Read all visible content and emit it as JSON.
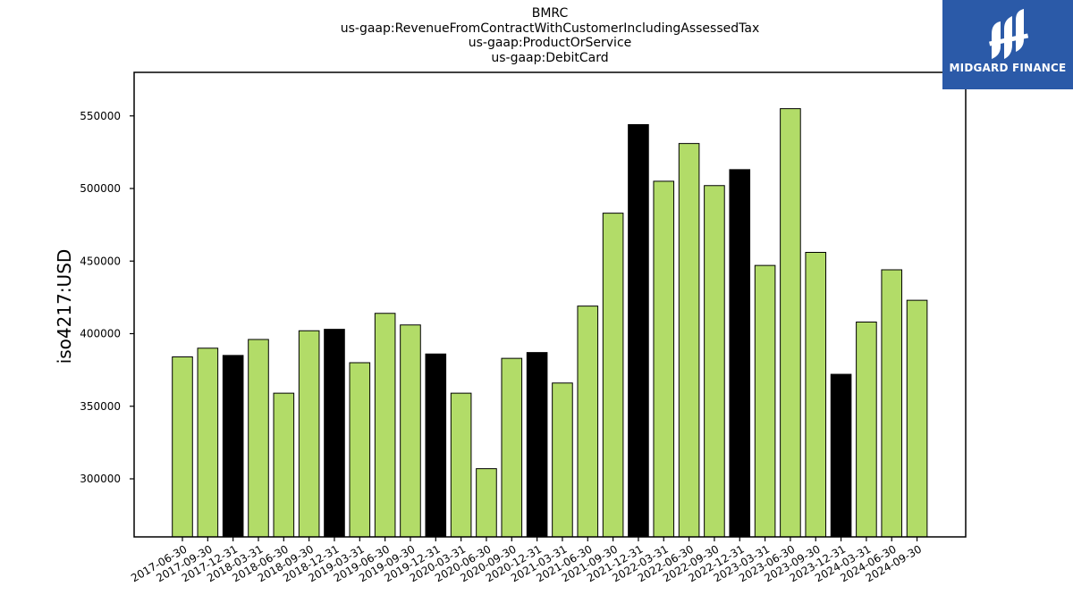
{
  "chart_data": {
    "type": "bar",
    "title_lines": [
      "BMRC",
      "us-gaap:RevenueFromContractWithCustomerIncludingAssessedTax",
      "us-gaap:ProductOrService",
      "us-gaap:DebitCard"
    ],
    "ylabel": "iso4217:USD",
    "xlabel": "",
    "ylim": [
      260000,
      580000
    ],
    "yticks": [
      300000,
      350000,
      400000,
      450000,
      500000,
      550000
    ],
    "ytick_labels": [
      "300000",
      "350000",
      "400000",
      "450000",
      "500000",
      "550000"
    ],
    "categories": [
      "2017-06-30",
      "2017-09-30",
      "2017-12-31",
      "2018-03-31",
      "2018-06-30",
      "2018-09-30",
      "2018-12-31",
      "2019-03-31",
      "2019-06-30",
      "2019-09-30",
      "2019-12-31",
      "2020-03-31",
      "2020-06-30",
      "2020-09-30",
      "2020-12-31",
      "2021-03-31",
      "2021-06-30",
      "2021-09-30",
      "2021-12-31",
      "2022-03-31",
      "2022-06-30",
      "2022-09-30",
      "2022-12-31",
      "2023-03-31",
      "2023-06-30",
      "2023-09-30",
      "2023-12-31",
      "2024-03-31",
      "2024-06-30",
      "2024-09-30"
    ],
    "values": [
      384000,
      390000,
      385000,
      396000,
      359000,
      402000,
      403000,
      380000,
      414000,
      406000,
      386000,
      359000,
      307000,
      383000,
      387000,
      366000,
      419000,
      483000,
      544000,
      505000,
      531000,
      502000,
      513000,
      447000,
      555000,
      456000,
      372000,
      408000,
      444000,
      423000
    ],
    "highlight_categories": [
      "2017-12-31",
      "2018-12-31",
      "2019-12-31",
      "2020-12-31",
      "2021-12-31",
      "2022-12-31",
      "2023-12-31"
    ],
    "colors": {
      "bar": "#b2dc68",
      "highlight": "#000000",
      "edge": "#000000"
    },
    "grid": false
  },
  "logo": {
    "text": "MIDGARD FINANCE",
    "background": "#2b5aa8",
    "icon": "midgard-logo-mark"
  }
}
